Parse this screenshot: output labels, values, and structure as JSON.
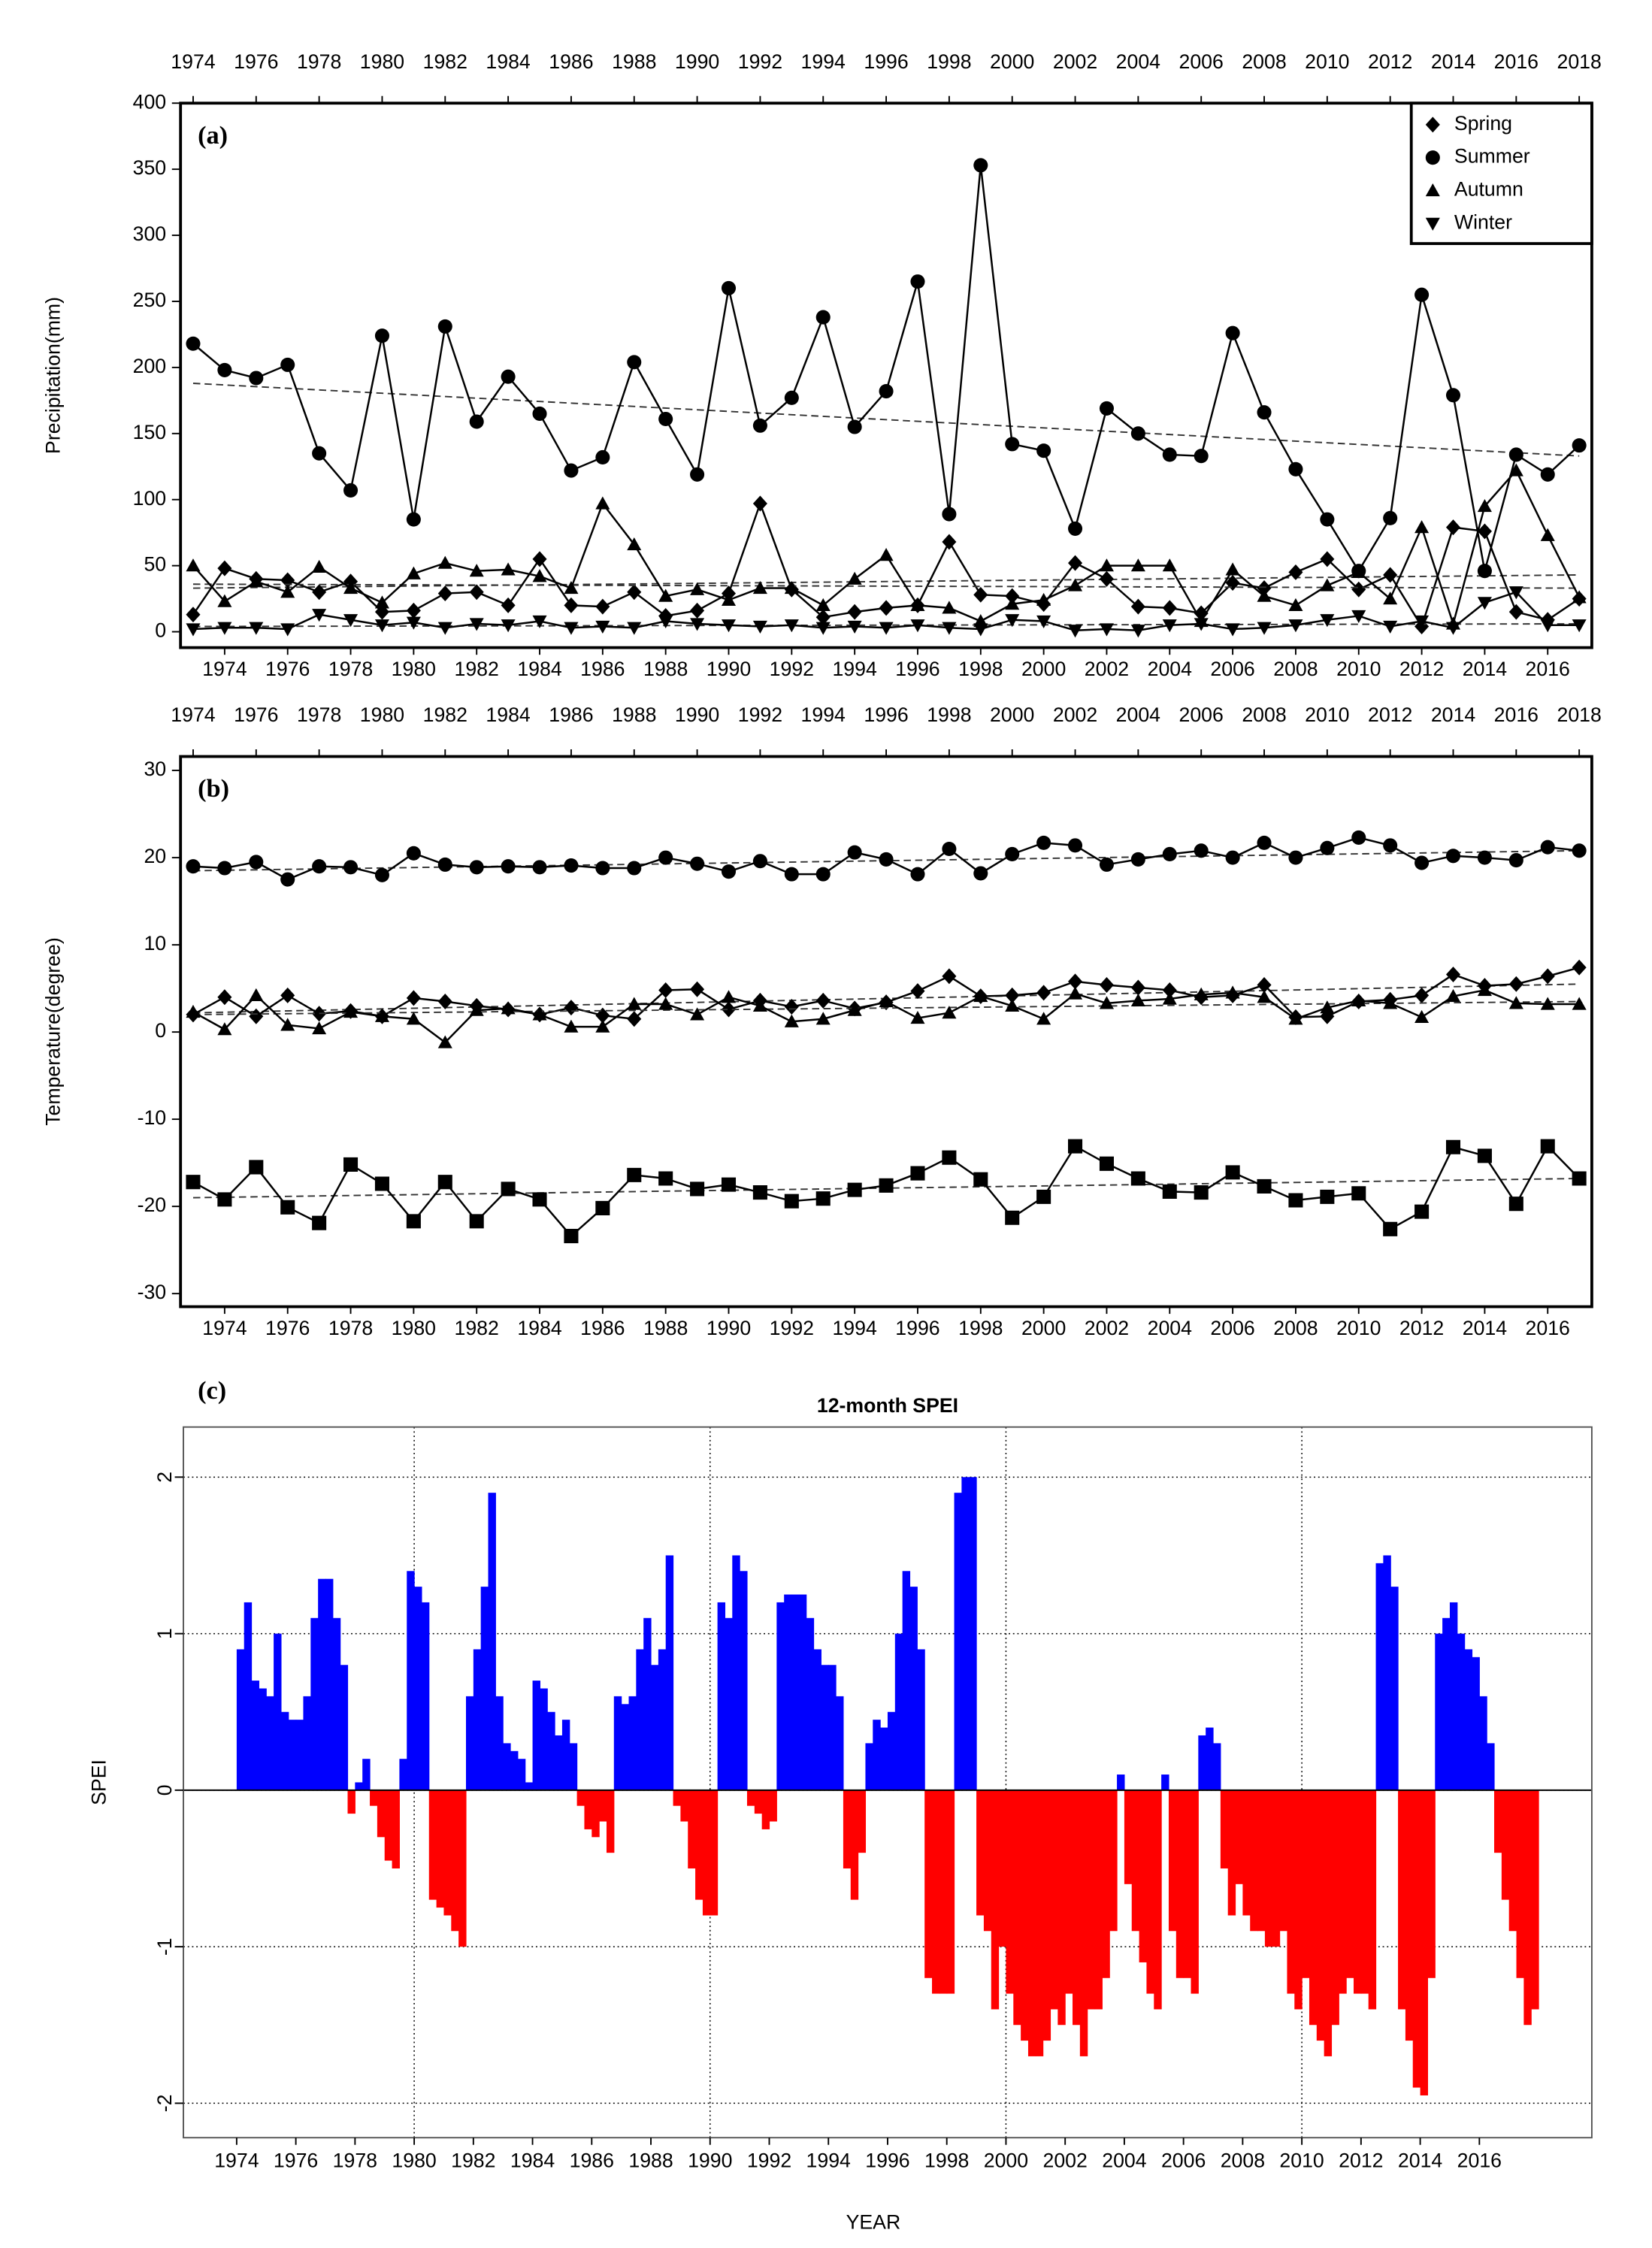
{
  "chart_data": [
    {
      "type": "line",
      "annotation": "(a)",
      "ylabel": "Precipitation(mm)",
      "x": [
        1973,
        1974,
        1975,
        1976,
        1977,
        1978,
        1979,
        1980,
        1981,
        1982,
        1983,
        1984,
        1985,
        1986,
        1987,
        1988,
        1989,
        1990,
        1991,
        1992,
        1993,
        1994,
        1995,
        1996,
        1997,
        1998,
        1999,
        2000,
        2001,
        2002,
        2003,
        2004,
        2005,
        2006,
        2007,
        2008,
        2009,
        2010,
        2011,
        2012,
        2013,
        2014,
        2015,
        2016,
        2017
      ],
      "xlim": [
        1972.6,
        2017.4
      ],
      "xticks": [
        1974,
        1976,
        1978,
        1980,
        1982,
        1984,
        1986,
        1988,
        1990,
        1992,
        1994,
        1996,
        1998,
        2000,
        2002,
        2004,
        2006,
        2008,
        2010,
        2012,
        2014,
        2016
      ],
      "x2ticks": [
        {
          "value": 1973,
          "label": "1974"
        },
        {
          "value": 1975,
          "label": "1976"
        },
        {
          "value": 1977,
          "label": "1978"
        },
        {
          "value": 1979,
          "label": "1980"
        },
        {
          "value": 1981,
          "label": "1982"
        },
        {
          "value": 1983,
          "label": "1984"
        },
        {
          "value": 1985,
          "label": "1986"
        },
        {
          "value": 1987,
          "label": "1988"
        },
        {
          "value": 1989,
          "label": "1990"
        },
        {
          "value": 1991,
          "label": "1992"
        },
        {
          "value": 1993,
          "label": "1994"
        },
        {
          "value": 1995,
          "label": "1996"
        },
        {
          "value": 1997,
          "label": "1998"
        },
        {
          "value": 1999,
          "label": "2000"
        },
        {
          "value": 2001,
          "label": "2002"
        },
        {
          "value": 2003,
          "label": "2004"
        },
        {
          "value": 2005,
          "label": "2006"
        },
        {
          "value": 2007,
          "label": "2008"
        },
        {
          "value": 2009,
          "label": "2010"
        },
        {
          "value": 2011,
          "label": "2012"
        },
        {
          "value": 2013,
          "label": "2014"
        },
        {
          "value": 2015,
          "label": "2016"
        },
        {
          "value": 2017,
          "label": "2018"
        }
      ],
      "ylim": [
        -12,
        400
      ],
      "yticks": [
        0,
        50,
        100,
        150,
        200,
        250,
        300,
        350,
        400
      ],
      "legend": "top-right",
      "series": [
        {
          "name": "Spring",
          "marker": "diamond",
          "color": "#000000",
          "trend": [
            33,
            43
          ],
          "values": [
            13,
            48,
            40,
            39,
            30,
            38,
            15,
            16,
            29,
            30,
            20,
            55,
            20,
            19,
            30,
            12,
            16,
            29,
            97,
            32,
            11,
            15,
            18,
            20,
            68,
            28,
            27,
            21,
            52,
            40,
            19,
            18,
            14,
            37,
            33,
            45,
            55,
            32,
            43,
            4,
            79,
            76,
            15,
            9,
            25
          ]
        },
        {
          "name": "Summer",
          "marker": "circle",
          "color": "#000000",
          "trend": [
            188,
            133
          ],
          "values": [
            218,
            198,
            192,
            202,
            135,
            107,
            224,
            85,
            231,
            159,
            193,
            165,
            122,
            132,
            204,
            161,
            119,
            260,
            156,
            177,
            238,
            155,
            182,
            265,
            89,
            353,
            142,
            137,
            78,
            169,
            150,
            134,
            133,
            226,
            166,
            123,
            85,
            46,
            86,
            255,
            179,
            46,
            134,
            119,
            141
          ]
        },
        {
          "name": "Autumn",
          "marker": "triangle-up",
          "color": "#000000",
          "trend": [
            36,
            33
          ],
          "values": [
            50,
            23,
            38,
            30,
            49,
            33,
            22,
            44,
            52,
            46,
            47,
            42,
            33,
            97,
            66,
            27,
            32,
            24,
            33,
            33,
            20,
            40,
            58,
            20,
            18,
            8,
            21,
            24,
            35,
            50,
            50,
            50,
            8,
            47,
            27,
            20,
            35,
            45,
            25,
            79,
            6,
            95,
            122,
            73,
            26
          ]
        },
        {
          "name": "Winter",
          "marker": "triangle-down",
          "color": "#000000",
          "trend": [
            4,
            6
          ],
          "values": [
            2,
            3,
            3,
            2,
            13,
            9,
            5,
            7,
            3,
            6,
            5,
            8,
            3,
            4,
            3,
            8,
            6,
            5,
            4,
            5,
            3,
            4,
            3,
            5,
            3,
            2,
            9,
            8,
            1,
            2,
            1,
            5,
            6,
            2,
            3,
            5,
            9,
            12,
            4,
            8,
            3,
            22,
            30,
            5,
            5
          ]
        }
      ]
    },
    {
      "type": "line",
      "annotation": "(b)",
      "ylabel": "Temperature(degree)",
      "x": [
        1973,
        1974,
        1975,
        1976,
        1977,
        1978,
        1979,
        1980,
        1981,
        1982,
        1983,
        1984,
        1985,
        1986,
        1987,
        1988,
        1989,
        1990,
        1991,
        1992,
        1993,
        1994,
        1995,
        1996,
        1997,
        1998,
        1999,
        2000,
        2001,
        2002,
        2003,
        2004,
        2005,
        2006,
        2007,
        2008,
        2009,
        2010,
        2011,
        2012,
        2013,
        2014,
        2015,
        2016,
        2017
      ],
      "xlim": [
        1972.6,
        2017.4
      ],
      "xticks": [
        1974,
        1976,
        1978,
        1980,
        1982,
        1984,
        1986,
        1988,
        1990,
        1992,
        1994,
        1996,
        1998,
        2000,
        2002,
        2004,
        2006,
        2008,
        2010,
        2012,
        2014,
        2016
      ],
      "x2ticks": [
        {
          "value": 1973,
          "label": "1974"
        },
        {
          "value": 1975,
          "label": "1976"
        },
        {
          "value": 1977,
          "label": "1978"
        },
        {
          "value": 1979,
          "label": "1980"
        },
        {
          "value": 1981,
          "label": "1982"
        },
        {
          "value": 1983,
          "label": "1984"
        },
        {
          "value": 1985,
          "label": "1986"
        },
        {
          "value": 1987,
          "label": "1988"
        },
        {
          "value": 1989,
          "label": "1990"
        },
        {
          "value": 1991,
          "label": "1992"
        },
        {
          "value": 1993,
          "label": "1994"
        },
        {
          "value": 1995,
          "label": "1996"
        },
        {
          "value": 1997,
          "label": "1998"
        },
        {
          "value": 1999,
          "label": "2000"
        },
        {
          "value": 2001,
          "label": "2002"
        },
        {
          "value": 2003,
          "label": "2004"
        },
        {
          "value": 2005,
          "label": "2006"
        },
        {
          "value": 2007,
          "label": "2008"
        },
        {
          "value": 2009,
          "label": "2010"
        },
        {
          "value": 2011,
          "label": "2012"
        },
        {
          "value": 2013,
          "label": "2014"
        },
        {
          "value": 2015,
          "label": "2016"
        },
        {
          "value": 2017,
          "label": "2018"
        }
      ],
      "ylim": [
        -31.5,
        31.6
      ],
      "yticks": [
        -30,
        -20,
        -10,
        0,
        10,
        20,
        30
      ],
      "series": [
        {
          "marker": "diamond",
          "color": "#000000",
          "trend": [
            2.2,
            5.5
          ],
          "values": [
            2.0,
            4.0,
            1.8,
            4.2,
            2.1,
            2.4,
            1.8,
            3.9,
            3.5,
            3.0,
            2.6,
            2.0,
            2.8,
            1.9,
            1.5,
            4.8,
            4.9,
            2.6,
            3.6,
            2.9,
            3.6,
            2.7,
            3.4,
            4.7,
            6.4,
            4.1,
            4.2,
            4.5,
            5.8,
            5.4,
            5.1,
            4.8,
            4.0,
            4.2,
            5.4,
            1.7,
            1.8,
            3.5,
            3.7,
            4.2,
            6.6,
            5.3,
            5.5,
            6.4,
            7.4
          ]
        },
        {
          "marker": "circle",
          "color": "#000000",
          "trend": [
            18.5,
            20.8
          ],
          "values": [
            19.0,
            18.8,
            19.5,
            17.5,
            19.0,
            18.9,
            18.0,
            20.5,
            19.2,
            18.9,
            19.0,
            18.9,
            19.1,
            18.8,
            18.8,
            20.0,
            19.3,
            18.4,
            19.6,
            18.1,
            18.1,
            20.6,
            19.8,
            18.1,
            21.0,
            18.2,
            20.4,
            21.7,
            21.4,
            19.2,
            19.8,
            20.4,
            20.8,
            20.0,
            21.7,
            20.0,
            21.1,
            22.3,
            21.4,
            19.4,
            20.2,
            20.0,
            19.7,
            21.2,
            20.8
          ]
        },
        {
          "marker": "triangle-up",
          "color": "#000000",
          "trend": [
            2.0,
            3.5
          ],
          "values": [
            2.3,
            0.3,
            4.2,
            0.8,
            0.4,
            2.3,
            1.8,
            1.5,
            -1.2,
            2.5,
            2.7,
            2.0,
            0.6,
            0.6,
            3.2,
            3.2,
            2.0,
            4.0,
            3.0,
            1.2,
            1.5,
            2.5,
            3.5,
            1.6,
            2.2,
            4.1,
            3.0,
            1.5,
            4.4,
            3.3,
            3.6,
            3.8,
            4.3,
            4.5,
            4.0,
            1.5,
            2.8,
            3.6,
            3.3,
            1.7,
            4.1,
            4.8,
            3.3,
            3.2,
            3.2
          ]
        },
        {
          "marker": "square",
          "color": "#000000",
          "trend": [
            -19.0,
            -16.8
          ],
          "values": [
            -17.2,
            -19.2,
            -15.5,
            -20.1,
            -21.9,
            -15.2,
            -17.4,
            -21.7,
            -17.2,
            -21.7,
            -18.0,
            -19.2,
            -23.4,
            -20.2,
            -16.4,
            -16.8,
            -18.0,
            -17.5,
            -18.4,
            -19.4,
            -19.1,
            -18.1,
            -17.6,
            -16.2,
            -14.4,
            -16.9,
            -21.3,
            -18.9,
            -13.1,
            -15.1,
            -16.8,
            -18.3,
            -18.4,
            -16.1,
            -17.7,
            -19.3,
            -18.9,
            -18.5,
            -22.6,
            -20.6,
            -13.2,
            -14.2,
            -19.7,
            -13.1,
            -16.8
          ]
        }
      ]
    },
    {
      "type": "bar",
      "annotation": "(c)",
      "title": "12-month SPEI",
      "xlabel": "YEAR",
      "ylabel": "SPEI",
      "pos_color": "#0000ff",
      "neg_color": "#ff0000",
      "grid": true,
      "xlim": [
        1972.2,
        2019.8
      ],
      "ylim": [
        -2.22,
        2.32
      ],
      "xticks": [
        1974,
        1976,
        1978,
        1980,
        1982,
        1984,
        1986,
        1988,
        1990,
        1992,
        1994,
        1996,
        1998,
        2000,
        2002,
        2004,
        2006,
        2008,
        2010,
        2012,
        2014,
        2016
      ],
      "xgrid": [
        1980,
        1990,
        2000,
        2010
      ],
      "yticks": [
        -2,
        -1,
        0,
        1,
        2
      ],
      "x": [
        1974,
        1975,
        1976,
        1977,
        1978,
        1979,
        1980,
        1981,
        1982,
        1983,
        1984,
        1985,
        1986,
        1987,
        1988,
        1989,
        1990,
        1991,
        1992,
        1993,
        1994,
        1995,
        1996,
        1997,
        1998,
        1999,
        2000,
        2001,
        2002,
        2003,
        2004,
        2005,
        2006,
        2007,
        2008,
        2009,
        2010,
        2011,
        2012,
        2013,
        2014,
        2015,
        2016,
        2017
      ],
      "values": [
        [
          0.9,
          1.2,
          0.7,
          0.65
        ],
        [
          0.6,
          1.0,
          0.5,
          0.45
        ],
        [
          0.45,
          0.6,
          1.1,
          1.35
        ],
        [
          1.35,
          1.1,
          0.8,
          -0.15
        ],
        [
          0.05,
          0.2,
          -0.1,
          -0.3
        ],
        [
          -0.45,
          -0.5,
          0.2,
          1.4
        ],
        [
          1.3,
          1.2,
          -0.7,
          -0.75
        ],
        [
          -0.8,
          -0.9,
          -1.0,
          0.6
        ],
        [
          0.9,
          1.3,
          1.9,
          0.6
        ],
        [
          0.3,
          0.25,
          0.2,
          0.05
        ],
        [
          0.7,
          0.65,
          0.5,
          0.35
        ],
        [
          0.45,
          0.3,
          -0.1,
          -0.25
        ],
        [
          -0.3,
          -0.2,
          -0.4,
          0.6
        ],
        [
          0.55,
          0.6,
          0.9,
          1.1
        ],
        [
          0.8,
          0.9,
          1.5,
          -0.1
        ],
        [
          -0.2,
          -0.5,
          -0.7,
          -0.8
        ],
        [
          -0.8,
          1.2,
          1.1,
          1.5
        ],
        [
          1.4,
          -0.1,
          -0.15,
          -0.25
        ],
        [
          -0.2,
          1.2,
          1.25,
          1.25
        ],
        [
          1.25,
          1.1,
          0.9,
          0.8
        ],
        [
          0.8,
          0.6,
          -0.5,
          -0.7
        ],
        [
          -0.4,
          0.3,
          0.45,
          0.4
        ],
        [
          0.5,
          1.0,
          1.4,
          1.3
        ],
        [
          0.9,
          -1.2,
          -1.3,
          -1.3
        ],
        [
          -1.3,
          1.9,
          2.0,
          2.0
        ],
        [
          -0.8,
          -0.9,
          -1.4,
          -1.0
        ],
        [
          -1.3,
          -1.5,
          -1.6,
          -1.7
        ],
        [
          -1.7,
          -1.6,
          -1.4,
          -1.5
        ],
        [
          -1.3,
          -1.5,
          -1.7,
          -1.4
        ],
        [
          -1.4,
          -1.2,
          -0.9,
          0.1
        ],
        [
          -0.6,
          -0.9,
          -1.1,
          -1.3
        ],
        [
          -1.4,
          0.1,
          -0.9,
          -1.2
        ],
        [
          -1.2,
          -1.3,
          0.35,
          0.4
        ],
        [
          0.3,
          -0.5,
          -0.8,
          -0.6
        ],
        [
          -0.8,
          -0.9,
          -0.9,
          -1.0
        ],
        [
          -1.0,
          -0.9,
          -1.3,
          -1.4
        ],
        [
          -1.2,
          -1.5,
          -1.6,
          -1.7
        ],
        [
          -1.5,
          -1.3,
          -1.2,
          -1.3
        ],
        [
          -1.3,
          -1.4,
          1.45,
          1.5
        ],
        [
          1.3,
          -1.4,
          -1.6,
          -1.9
        ],
        [
          -1.95,
          -1.2,
          1.0,
          1.1
        ],
        [
          1.2,
          1.0,
          0.9,
          0.85
        ],
        [
          0.6,
          0.3,
          -0.4,
          -0.7
        ],
        [
          -0.9,
          -1.2,
          -1.5,
          -1.4
        ]
      ]
    }
  ]
}
